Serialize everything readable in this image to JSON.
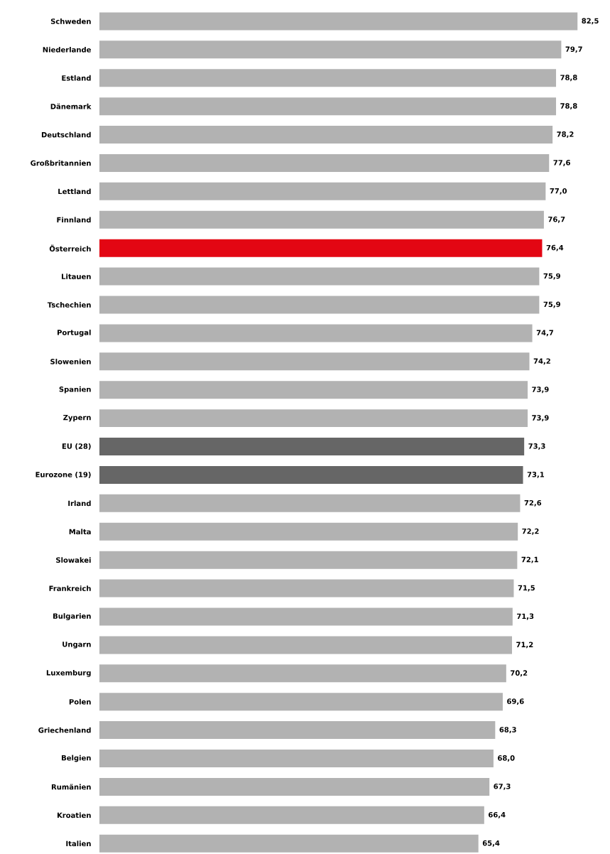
{
  "chart_data": {
    "type": "bar",
    "orientation": "horizontal",
    "categories": [
      "Schweden",
      "Niederlande",
      "Estland",
      "Dänemark",
      "Deutschland",
      "Großbritannien",
      "Lettland",
      "Finnland",
      "Österreich",
      "Litauen",
      "Tschechien",
      "Portugal",
      "Slowenien",
      "Spanien",
      "Zypern",
      "EU (28)",
      "Eurozone (19)",
      "Irland",
      "Malta",
      "Slowakei",
      "Frankreich",
      "Bulgarien",
      "Ungarn",
      "Luxemburg",
      "Polen",
      "Griechenland",
      "Belgien",
      "Rumänien",
      "Kroatien",
      "Italien"
    ],
    "values": [
      82.5,
      79.7,
      78.8,
      78.8,
      78.2,
      77.6,
      77.0,
      76.7,
      76.4,
      75.9,
      75.9,
      74.7,
      74.2,
      73.9,
      73.9,
      73.3,
      73.1,
      72.6,
      72.2,
      72.1,
      71.5,
      71.3,
      71.2,
      70.2,
      69.6,
      68.3,
      68.0,
      67.3,
      66.4,
      65.4
    ],
    "value_labels": [
      "82,5",
      "79,7",
      "78,8",
      "78,8",
      "78,2",
      "77,6",
      "77,0",
      "76,7",
      "76,4",
      "75,9",
      "75,9",
      "74,7",
      "74,2",
      "73,9",
      "73,9",
      "73,3",
      "73,1",
      "72,6",
      "72,2",
      "72,1",
      "71,5",
      "71,3",
      "71,2",
      "70,2",
      "69,6",
      "68,3",
      "68,0",
      "67,3",
      "66,4",
      "65,4"
    ],
    "colors": [
      "#b2b2b2",
      "#b2b2b2",
      "#b2b2b2",
      "#b2b2b2",
      "#b2b2b2",
      "#b2b2b2",
      "#b2b2b2",
      "#b2b2b2",
      "#e30613",
      "#b2b2b2",
      "#b2b2b2",
      "#b2b2b2",
      "#b2b2b2",
      "#b2b2b2",
      "#b2b2b2",
      "#666666",
      "#666666",
      "#b2b2b2",
      "#b2b2b2",
      "#b2b2b2",
      "#b2b2b2",
      "#b2b2b2",
      "#b2b2b2",
      "#b2b2b2",
      "#b2b2b2",
      "#b2b2b2",
      "#b2b2b2",
      "#b2b2b2",
      "#b2b2b2",
      "#b2b2b2"
    ],
    "xlim": [
      0,
      82.5
    ],
    "tick_labels": "y"
  }
}
